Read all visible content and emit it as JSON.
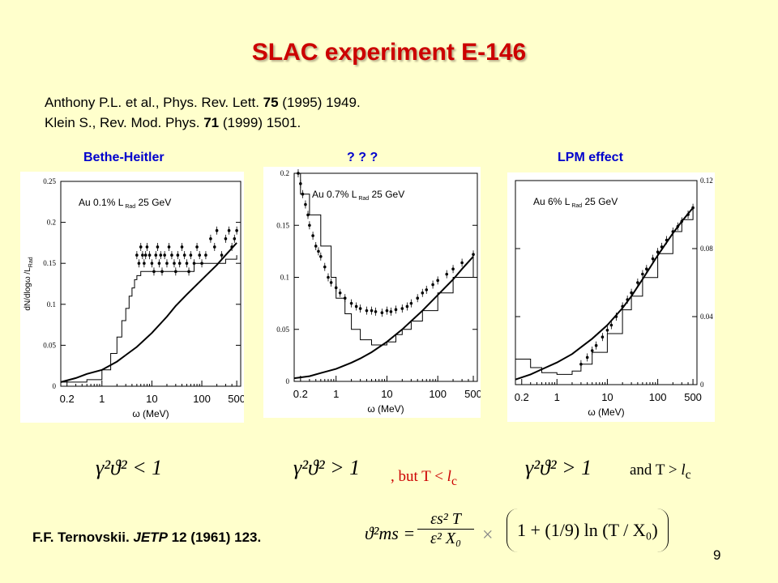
{
  "slide": {
    "title": "SLAC experiment E-146",
    "refs": [
      {
        "pre": "Anthony P.L. et al., Phys. Rev. Lett. ",
        "bold": "75",
        "post": " (1995) 1949."
      },
      {
        "pre": "Klein S., Rev. Mod. Phys. ",
        "bold": "71",
        "post": " (1999) 1501."
      }
    ],
    "panel_labels": [
      "Bethe-Heitler",
      "? ? ?",
      "LPM effect"
    ],
    "conditions": {
      "left": "γ²ϑ² < 1",
      "mid": "γ²ϑ² > 1",
      "mid_note_pre": ", but T < ",
      "mid_note_l": "l",
      "mid_note_sub": "c",
      "right": "γ²ϑ² > 1",
      "right_note_pre": "and  T > ",
      "right_note_l": "l",
      "right_note_sub": "c"
    },
    "ternovskii": {
      "pre": "F.F. Ternovskii. ",
      "journal": "JETP",
      "post": " 12 (1961) 123."
    },
    "formula": {
      "lhs": "ϑ²ms =",
      "frac1_num": "εs² T",
      "frac1_den": "ε² X₀",
      "times": "×",
      "paren": "1 + (1/9) ln (T / X₀)"
    },
    "page_number": "9",
    "colors": {
      "title": "#cc0000",
      "panel_label": "#0000cc",
      "background": "#ffffcc"
    }
  },
  "chart_data": [
    {
      "type": "line",
      "annotation": {
        "target": "Au",
        "thickness": "0.1% L",
        "sub": "Rad",
        "energy": "25 GeV"
      },
      "ylabel": "dN/dlogω /L",
      "ylabel_sub": "Rad",
      "xlabel": "ω (MeV)",
      "xlog": true,
      "xlim": [
        0.15,
        600
      ],
      "ylim": [
        0,
        0.25
      ],
      "yticks": [
        "0",
        "0.05",
        "0.1",
        "0.15",
        "0.2",
        "0.25"
      ],
      "xticks": [
        "0.2",
        "1",
        "10",
        "100",
        "500"
      ],
      "axis_side": "left",
      "series": [
        {
          "style": "data",
          "x": [
            5,
            5.5,
            6,
            6.5,
            7,
            7.5,
            8,
            9,
            10,
            11,
            12,
            13,
            14,
            15,
            16,
            18,
            20,
            22,
            25,
            28,
            30,
            33,
            36,
            40,
            45,
            50,
            55,
            60,
            70,
            80,
            90,
            100,
            120,
            150,
            180,
            200,
            250,
            300,
            350,
            400,
            450,
            500
          ],
          "y": [
            0.16,
            0.15,
            0.17,
            0.16,
            0.15,
            0.16,
            0.17,
            0.16,
            0.15,
            0.14,
            0.16,
            0.17,
            0.15,
            0.16,
            0.14,
            0.16,
            0.15,
            0.17,
            0.16,
            0.15,
            0.14,
            0.16,
            0.15,
            0.17,
            0.16,
            0.15,
            0.14,
            0.16,
            0.15,
            0.17,
            0.16,
            0.15,
            0.16,
            0.18,
            0.17,
            0.19,
            0.16,
            0.18,
            0.19,
            0.17,
            0.18,
            0.19
          ]
        },
        {
          "style": "hist",
          "x": [
            0.15,
            0.5,
            1,
            1.5,
            2,
            2.5,
            3,
            3.5,
            4,
            4.5,
            5,
            6,
            8,
            10,
            15,
            20,
            30,
            50,
            70,
            100,
            150,
            200,
            300,
            500
          ],
          "y": [
            0.005,
            0.008,
            0.02,
            0.04,
            0.06,
            0.08,
            0.095,
            0.11,
            0.12,
            0.13,
            0.135,
            0.14,
            0.14,
            0.14,
            0.14,
            0.14,
            0.14,
            0.14,
            0.15,
            0.15,
            0.15,
            0.15,
            0.155,
            0.16
          ]
        },
        {
          "style": "curve",
          "x": [
            0.15,
            0.3,
            0.5,
            1,
            2,
            3,
            5,
            10,
            20,
            30,
            50,
            100,
            200,
            300,
            500
          ],
          "y": [
            0.005,
            0.01,
            0.015,
            0.02,
            0.03,
            0.038,
            0.048,
            0.065,
            0.085,
            0.098,
            0.112,
            0.13,
            0.148,
            0.16,
            0.175
          ]
        }
      ]
    },
    {
      "type": "line",
      "annotation": {
        "target": "Au",
        "thickness": "0.7% L",
        "sub": "Rad",
        "energy": "25 GeV"
      },
      "ylabel": "",
      "xlabel": "ω (MeV)",
      "xlog": true,
      "xlim": [
        0.15,
        600
      ],
      "ylim": [
        0,
        0.2
      ],
      "yticks": [
        "0",
        "0.05",
        "0.1",
        "0.15",
        "0.2"
      ],
      "xticks": [
        "0.2",
        "1",
        "10",
        "100",
        "500"
      ],
      "axis_side": "left",
      "series": [
        {
          "style": "data",
          "x": [
            0.18,
            0.2,
            0.22,
            0.25,
            0.28,
            0.3,
            0.35,
            0.4,
            0.45,
            0.5,
            0.6,
            0.7,
            0.8,
            1,
            1.2,
            1.5,
            2,
            2.5,
            3,
            4,
            5,
            6,
            8,
            10,
            12,
            15,
            20,
            25,
            30,
            40,
            50,
            60,
            80,
            100,
            150,
            200,
            300,
            500
          ],
          "y": [
            0.2,
            0.19,
            0.18,
            0.17,
            0.16,
            0.15,
            0.14,
            0.13,
            0.125,
            0.12,
            0.11,
            0.1,
            0.095,
            0.09,
            0.085,
            0.08,
            0.075,
            0.072,
            0.07,
            0.068,
            0.068,
            0.067,
            0.066,
            0.068,
            0.067,
            0.069,
            0.07,
            0.072,
            0.075,
            0.08,
            0.085,
            0.088,
            0.093,
            0.097,
            0.103,
            0.108,
            0.114,
            0.122
          ]
        },
        {
          "style": "hist",
          "x": [
            0.15,
            0.2,
            0.3,
            0.5,
            0.8,
            1,
            1.5,
            2,
            3,
            5,
            8,
            10,
            15,
            20,
            30,
            50,
            100,
            200,
            500
          ],
          "y": [
            0.2,
            0.18,
            0.16,
            0.13,
            0.1,
            0.08,
            0.065,
            0.05,
            0.04,
            0.035,
            0.035,
            0.038,
            0.045,
            0.05,
            0.058,
            0.068,
            0.085,
            0.1,
            0.12
          ]
        },
        {
          "style": "curve",
          "x": [
            0.15,
            0.3,
            0.5,
            1,
            2,
            3,
            5,
            10,
            20,
            30,
            50,
            100,
            200,
            300,
            500
          ],
          "y": [
            0.003,
            0.005,
            0.008,
            0.012,
            0.018,
            0.022,
            0.028,
            0.038,
            0.05,
            0.058,
            0.068,
            0.083,
            0.098,
            0.108,
            0.12
          ]
        }
      ]
    },
    {
      "type": "line",
      "annotation": {
        "target": "Au",
        "thickness": "6% L",
        "sub": "Rad",
        "energy": "25 GeV"
      },
      "ylabel": "",
      "xlabel": "ω (MeV)",
      "xlog": true,
      "xlim": [
        0.15,
        600
      ],
      "ylim": [
        0,
        0.12
      ],
      "yticks": [
        "0",
        "0.04",
        "0.08",
        "0.12"
      ],
      "xticks": [
        "0.2",
        "1",
        "10",
        "100",
        "500"
      ],
      "axis_side": "right",
      "series": [
        {
          "style": "data",
          "x": [
            3,
            4,
            5,
            6,
            8,
            10,
            12,
            15,
            20,
            25,
            30,
            40,
            50,
            60,
            80,
            100,
            120,
            150,
            200,
            250,
            300,
            400,
            500
          ],
          "y": [
            0.012,
            0.016,
            0.02,
            0.023,
            0.028,
            0.032,
            0.035,
            0.04,
            0.046,
            0.05,
            0.054,
            0.06,
            0.065,
            0.068,
            0.074,
            0.078,
            0.081,
            0.085,
            0.09,
            0.093,
            0.096,
            0.1,
            0.104
          ]
        },
        {
          "style": "hist",
          "x": [
            0.15,
            0.3,
            0.5,
            1,
            2,
            3,
            5,
            10,
            20,
            30,
            50,
            100,
            200,
            300,
            500
          ],
          "y": [
            0.015,
            0.01,
            0.007,
            0.006,
            0.008,
            0.012,
            0.019,
            0.03,
            0.044,
            0.052,
            0.063,
            0.077,
            0.09,
            0.097,
            0.104
          ]
        },
        {
          "style": "curve",
          "x": [
            0.15,
            0.3,
            0.5,
            1,
            2,
            3,
            5,
            10,
            20,
            30,
            50,
            100,
            200,
            300,
            500
          ],
          "y": [
            0.003,
            0.006,
            0.009,
            0.013,
            0.018,
            0.022,
            0.027,
            0.035,
            0.045,
            0.052,
            0.062,
            0.076,
            0.089,
            0.096,
            0.104
          ]
        }
      ]
    }
  ]
}
